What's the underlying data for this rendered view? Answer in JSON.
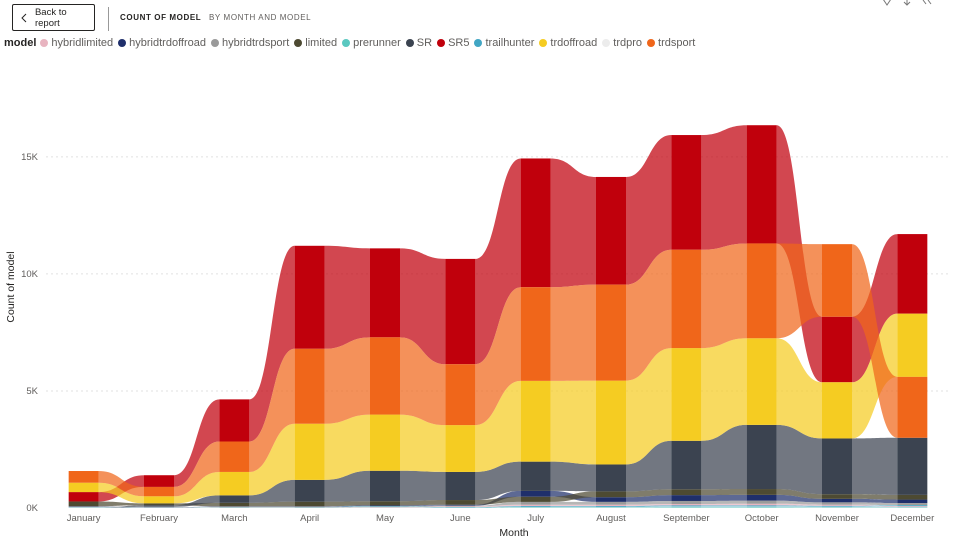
{
  "header": {
    "back_label": "Back to report",
    "title": "COUNT OF MODEL",
    "subtitle": "BY MONTH AND MODEL"
  },
  "legend": {
    "title": "model",
    "items": [
      {
        "name": "hybridlimited",
        "color": "#e8b4c0"
      },
      {
        "name": "hybridtrdoffroad",
        "color": "#1f2f6b"
      },
      {
        "name": "hybridtrdsport",
        "color": "#9a9a9a"
      },
      {
        "name": "limited",
        "color": "#4d4a32"
      },
      {
        "name": "prerunner",
        "color": "#5ac8c0"
      },
      {
        "name": "SR",
        "color": "#3b4350"
      },
      {
        "name": "SR5",
        "color": "#c0000c"
      },
      {
        "name": "trailhunter",
        "color": "#41a6c4"
      },
      {
        "name": "trdoffroad",
        "color": "#f5cc22"
      },
      {
        "name": "trdpro",
        "color": "#ececec"
      },
      {
        "name": "trdsport",
        "color": "#f0661a"
      }
    ]
  },
  "chart_data": {
    "type": "ribbon",
    "title": "Count of model by Month and model",
    "xlabel": "Month",
    "ylabel": "Count of model",
    "ylim": [
      0,
      17000
    ],
    "yticks": [
      0,
      5000,
      10000,
      15000
    ],
    "ytick_labels": [
      "0K",
      "5K",
      "10K",
      "15K"
    ],
    "categories": [
      "January",
      "February",
      "March",
      "April",
      "May",
      "June",
      "July",
      "August",
      "September",
      "October",
      "November",
      "December"
    ],
    "series": [
      {
        "name": "hybridlimited",
        "color": "#e8b4c0",
        "values": [
          10,
          10,
          10,
          10,
          20,
          30,
          60,
          60,
          60,
          70,
          50,
          40
        ]
      },
      {
        "name": "hybridtrdoffroad",
        "color": "#1f2f6b",
        "values": [
          20,
          10,
          20,
          20,
          30,
          40,
          250,
          200,
          250,
          250,
          150,
          150
        ]
      },
      {
        "name": "hybridtrdsport",
        "color": "#9a9a9a",
        "values": [
          20,
          10,
          10,
          10,
          20,
          30,
          120,
          120,
          130,
          130,
          100,
          90
        ]
      },
      {
        "name": "limited",
        "color": "#4d4a32",
        "values": [
          200,
          80,
          150,
          200,
          180,
          200,
          220,
          250,
          250,
          250,
          200,
          200
        ]
      },
      {
        "name": "prerunner",
        "color": "#5ac8c0",
        "values": [
          10,
          5,
          10,
          10,
          10,
          10,
          20,
          20,
          30,
          30,
          20,
          20
        ]
      },
      {
        "name": "SR",
        "color": "#3b4350",
        "values": [
          0,
          70,
          320,
          930,
          1300,
          1200,
          1250,
          1150,
          2070,
          2740,
          2380,
          2440
        ]
      },
      {
        "name": "SR5",
        "color": "#c0000c",
        "values": [
          400,
          500,
          1800,
          4400,
          3800,
          4500,
          5500,
          4600,
          4900,
          5050,
          2800,
          3400
        ]
      },
      {
        "name": "trailhunter",
        "color": "#41a6c4",
        "values": [
          10,
          5,
          10,
          10,
          20,
          20,
          40,
          40,
          50,
          50,
          40,
          40
        ]
      },
      {
        "name": "trdoffroad",
        "color": "#f5cc22",
        "values": [
          400,
          300,
          1000,
          2400,
          2400,
          2000,
          3450,
          3580,
          3960,
          3700,
          2400,
          2700
        ]
      },
      {
        "name": "trdpro",
        "color": "#ececec",
        "values": [
          10,
          10,
          10,
          10,
          10,
          10,
          20,
          20,
          30,
          30,
          30,
          20
        ]
      },
      {
        "name": "trdsport",
        "color": "#f0661a",
        "values": [
          500,
          400,
          1300,
          3200,
          3300,
          2600,
          4000,
          4100,
          4200,
          4050,
          3100,
          2600
        ]
      }
    ]
  }
}
